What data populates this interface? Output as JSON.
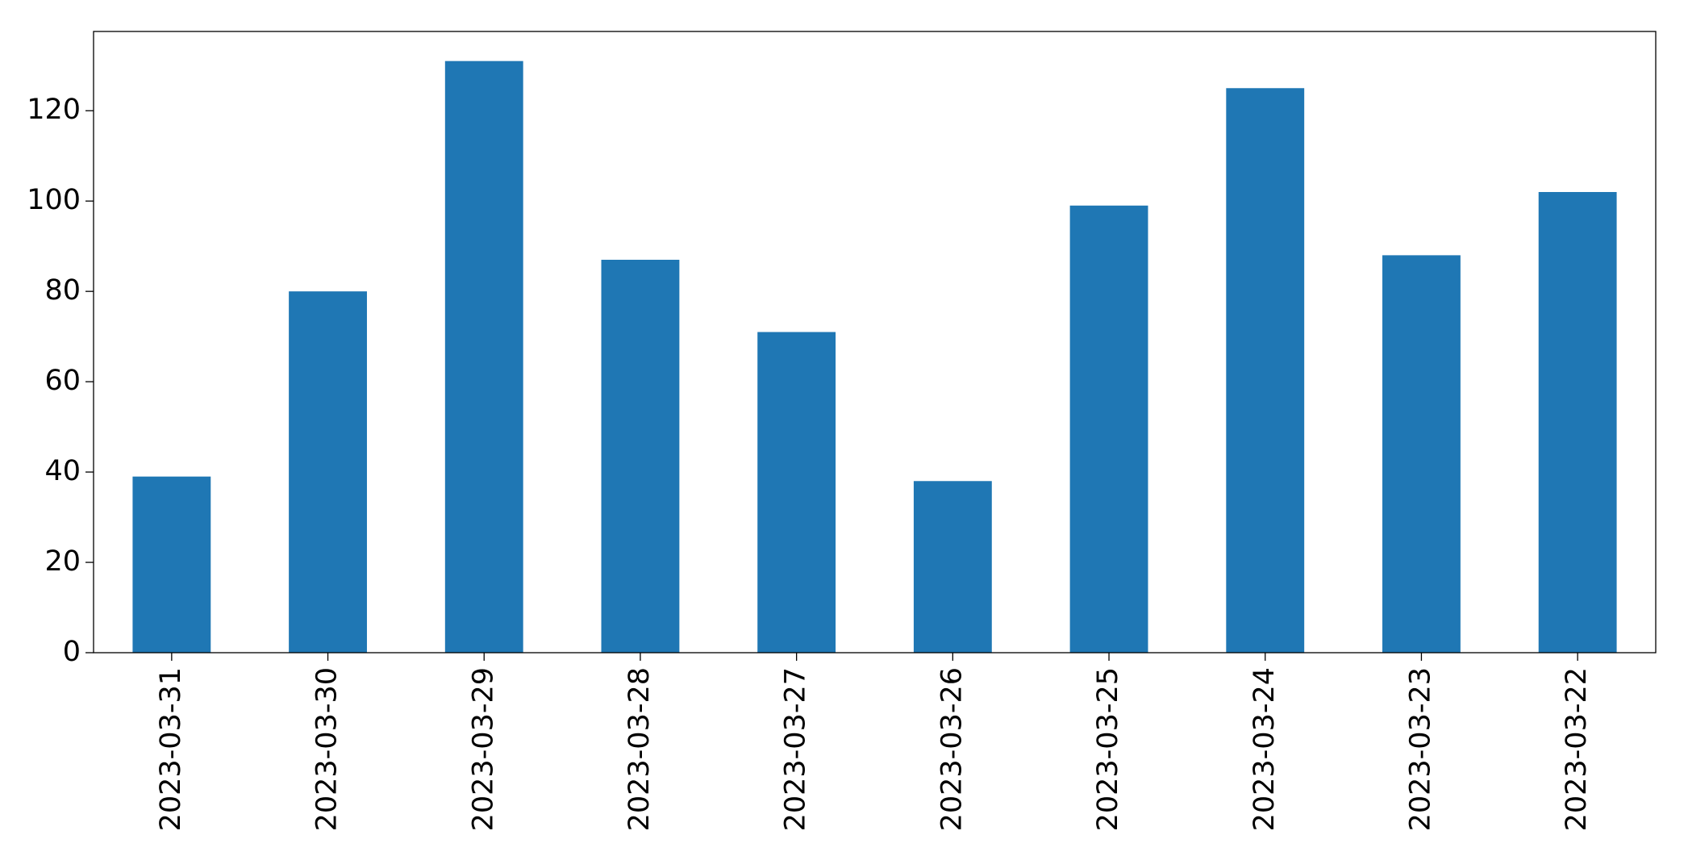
{
  "chart_data": {
    "type": "bar",
    "categories": [
      "2023-03-31",
      "2023-03-30",
      "2023-03-29",
      "2023-03-28",
      "2023-03-27",
      "2023-03-26",
      "2023-03-25",
      "2023-03-24",
      "2023-03-23",
      "2023-03-22"
    ],
    "values": [
      39,
      80,
      131,
      87,
      71,
      38,
      99,
      125,
      88,
      102
    ],
    "color": "#1f77b4",
    "ylim": [
      0,
      137.55
    ],
    "yticks": [
      0,
      20,
      40,
      60,
      80,
      100,
      120
    ],
    "grid": false
  }
}
